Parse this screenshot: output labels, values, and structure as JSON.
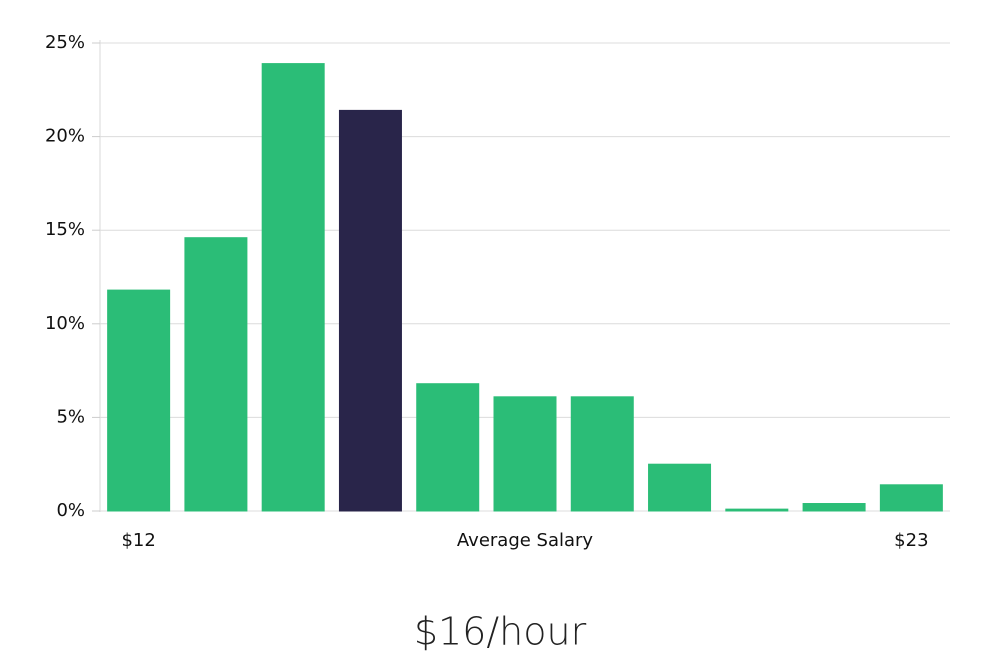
{
  "chart_data": {
    "type": "bar",
    "categories": [
      "$12",
      null,
      null,
      null,
      null,
      null,
      null,
      null,
      null,
      null,
      "$23"
    ],
    "values": [
      11.8,
      14.6,
      23.9,
      21.4,
      6.8,
      6.1,
      6.1,
      2.5,
      0.1,
      0.4,
      1.4
    ],
    "colors": [
      "#2bbd77",
      "#2bbd77",
      "#2bbd77",
      "#29254a",
      "#2bbd77",
      "#2bbd77",
      "#2bbd77",
      "#2bbd77",
      "#2bbd77",
      "#2bbd77",
      "#2bbd77"
    ],
    "x_label": "Average Salary",
    "headline": "$16/hour",
    "ylim": [
      0,
      25
    ],
    "yticks": [
      {
        "value": 0,
        "label": "0%"
      },
      {
        "value": 5,
        "label": "5%"
      },
      {
        "value": 10,
        "label": "10%"
      },
      {
        "value": 15,
        "label": "15%"
      },
      {
        "value": 20,
        "label": "20%"
      },
      {
        "value": 25,
        "label": "25%"
      }
    ],
    "grid": true
  }
}
